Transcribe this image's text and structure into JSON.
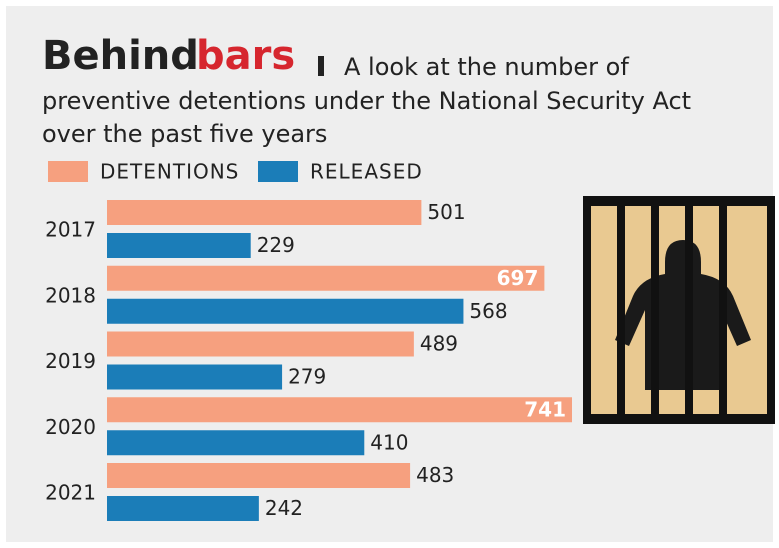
{
  "chart_data": {
    "type": "bar",
    "orientation": "horizontal",
    "title": "Behind",
    "title_highlight": "bars",
    "subtitle": [
      "A look at the number of",
      "preventive detentions under the National Security Act",
      "over the past five years"
    ],
    "categories": [
      "2017",
      "2018",
      "2019",
      "2020",
      "2021"
    ],
    "series": [
      {
        "name": "DETENTIONS",
        "color": "#f6a07f",
        "values": [
          501,
          697,
          489,
          741,
          483
        ]
      },
      {
        "name": "RELEASED",
        "color": "#1b7db8",
        "values": [
          229,
          568,
          279,
          410,
          242
        ]
      }
    ]
  }
}
